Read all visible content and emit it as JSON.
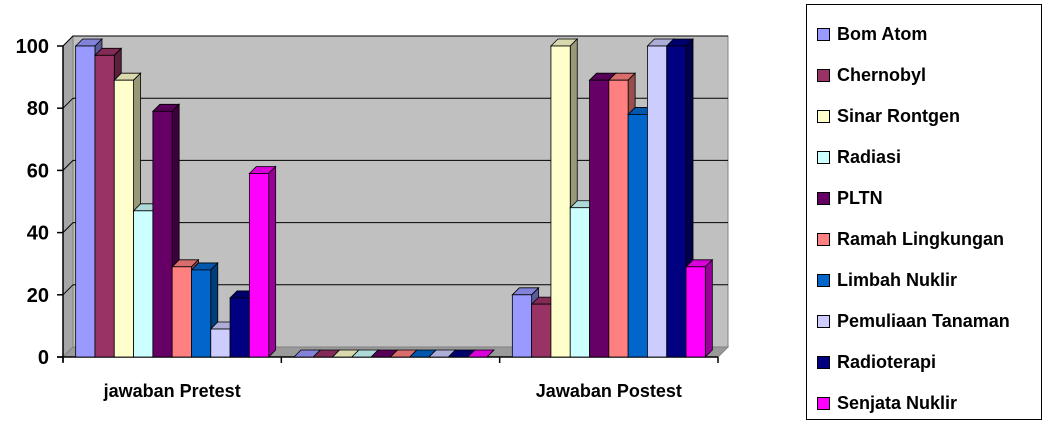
{
  "chart_data": {
    "type": "bar",
    "style": "3d-clustered-column",
    "categories": [
      "jawaban Pretest",
      "",
      "Jawaban Postest"
    ],
    "ylim": [
      0,
      100
    ],
    "yticks": [
      "0",
      "20",
      "40",
      "60",
      "80",
      "100"
    ],
    "grid": true,
    "legend_position": "right",
    "series": [
      {
        "name": "Bom Atom",
        "color": "#9999FF",
        "values": [
          100,
          0,
          20
        ]
      },
      {
        "name": "Chernobyl",
        "color": "#993366",
        "values": [
          97,
          0,
          17
        ]
      },
      {
        "name": "Sinar Rontgen",
        "color": "#FFFFCC",
        "values": [
          89,
          0,
          100
        ]
      },
      {
        "name": "Radiasi",
        "color": "#CCFFFF",
        "values": [
          47,
          0,
          48
        ]
      },
      {
        "name": "PLTN",
        "color": "#660066",
        "values": [
          79,
          0,
          89
        ]
      },
      {
        "name": "Ramah Lingkungan",
        "color": "#FF8080",
        "values": [
          29,
          0,
          89
        ]
      },
      {
        "name": "Limbah Nuklir",
        "color": "#0066CC",
        "values": [
          28,
          0,
          78
        ]
      },
      {
        "name": "Pemuliaan Tanaman",
        "color": "#CCCCFF",
        "values": [
          9,
          0,
          100
        ]
      },
      {
        "name": "Radioterapi",
        "color": "#000080",
        "values": [
          19,
          0,
          100
        ]
      },
      {
        "name": "Senjata Nuklir",
        "color": "#FF00FF",
        "values": [
          59,
          0,
          29
        ]
      }
    ]
  }
}
